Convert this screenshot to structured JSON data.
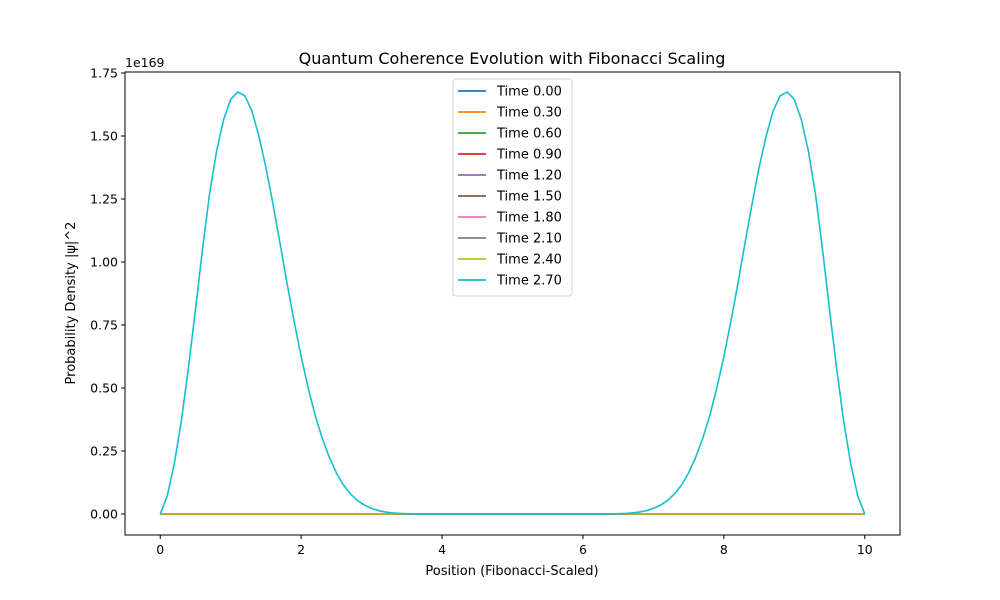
{
  "chart_data": {
    "type": "line",
    "title": "Quantum Coherence Evolution with Fibonacci Scaling",
    "xlabel": "Position (Fibonacci-Scaled)",
    "ylabel": "Probability Density |ψ|^2",
    "y_offset_label": "1e169",
    "xlim": [
      -0.5,
      10.5
    ],
    "ylim": [
      -0.0835,
      1.754
    ],
    "x_ticks": [
      0,
      2,
      4,
      6,
      8,
      10
    ],
    "x_tick_labels": [
      "0",
      "2",
      "4",
      "6",
      "8",
      "10"
    ],
    "y_ticks": [
      0.0,
      0.25,
      0.5,
      0.75,
      1.0,
      1.25,
      1.5,
      1.75
    ],
    "y_tick_labels": [
      "0.00",
      "0.25",
      "0.50",
      "0.75",
      "1.00",
      "1.25",
      "1.50",
      "1.75"
    ],
    "grid": false,
    "legend_position": "top-center",
    "x": [
      0.0,
      0.1,
      0.2,
      0.3,
      0.4,
      0.5,
      0.6,
      0.7,
      0.8,
      0.9,
      1.0,
      1.1,
      1.2,
      1.3,
      1.4,
      1.5,
      1.6,
      1.7,
      1.8,
      1.9,
      2.0,
      2.1,
      2.2,
      2.3,
      2.4,
      2.5,
      2.6,
      2.7,
      2.8,
      2.9,
      3.0,
      3.1,
      3.2,
      3.3,
      3.4,
      3.5,
      3.6,
      3.7,
      3.8,
      3.9,
      4.0,
      4.1,
      4.2,
      4.3,
      4.4,
      4.5,
      4.6,
      4.7,
      4.8,
      4.9,
      5.0,
      5.1,
      5.2,
      5.3,
      5.4,
      5.5,
      5.6,
      5.7,
      5.8,
      5.9,
      6.0,
      6.1,
      6.2,
      6.3,
      6.4,
      6.5,
      6.6,
      6.7,
      6.8,
      6.9,
      7.0,
      7.1,
      7.2,
      7.3,
      7.4,
      7.5,
      7.6,
      7.7,
      7.8,
      7.9,
      8.0,
      8.1,
      8.2,
      8.3,
      8.4,
      8.5,
      8.6,
      8.7,
      8.8,
      8.9,
      9.0,
      9.1,
      9.2,
      9.3,
      9.4,
      9.5,
      9.6,
      9.7,
      9.8,
      9.9,
      10.0
    ],
    "series": [
      {
        "name": "Time 0.00",
        "color": "#1f77b4",
        "constant": 0
      },
      {
        "name": "Time 0.30",
        "color": "#ff7f0e",
        "constant": 0
      },
      {
        "name": "Time 0.60",
        "color": "#2ca02c",
        "constant": 0
      },
      {
        "name": "Time 0.90",
        "color": "#d62728",
        "constant": 0
      },
      {
        "name": "Time 1.20",
        "color": "#9467bd",
        "constant": 0
      },
      {
        "name": "Time 1.50",
        "color": "#8c564b",
        "constant": 0
      },
      {
        "name": "Time 1.80",
        "color": "#e377c2",
        "constant": 0
      },
      {
        "name": "Time 2.10",
        "color": "#7f7f7f",
        "constant": 0
      },
      {
        "name": "Time 2.40",
        "color": "#bcbd22",
        "constant": 0
      },
      {
        "name": "Time 2.70",
        "color": "#17becf",
        "values": [
          0.0,
          0.072,
          0.2,
          0.37,
          0.58,
          0.81,
          1.05,
          1.27,
          1.44,
          1.565,
          1.645,
          1.675,
          1.66,
          1.6,
          1.5,
          1.375,
          1.23,
          1.075,
          0.915,
          0.765,
          0.625,
          0.5,
          0.39,
          0.3,
          0.225,
          0.163,
          0.115,
          0.08,
          0.053,
          0.035,
          0.022,
          0.013,
          0.0075,
          0.0042,
          0.0022,
          0.0011,
          0.0005,
          0.0002,
          0.0001,
          0.0,
          0.0,
          0.0,
          0.0,
          0.0,
          0.0,
          0.0,
          0.0,
          0.0,
          0.0,
          0.0,
          0.0,
          0.0,
          0.0,
          0.0,
          0.0,
          0.0,
          0.0,
          0.0,
          0.0,
          0.0,
          0.0,
          0.0,
          0.0001,
          0.0002,
          0.0005,
          0.0011,
          0.0022,
          0.0042,
          0.0075,
          0.013,
          0.022,
          0.035,
          0.053,
          0.08,
          0.115,
          0.163,
          0.225,
          0.3,
          0.39,
          0.5,
          0.625,
          0.765,
          0.915,
          1.075,
          1.23,
          1.375,
          1.5,
          1.6,
          1.66,
          1.675,
          1.645,
          1.565,
          1.44,
          1.27,
          1.05,
          0.81,
          0.58,
          0.37,
          0.2,
          0.072,
          0.0
        ]
      }
    ]
  }
}
